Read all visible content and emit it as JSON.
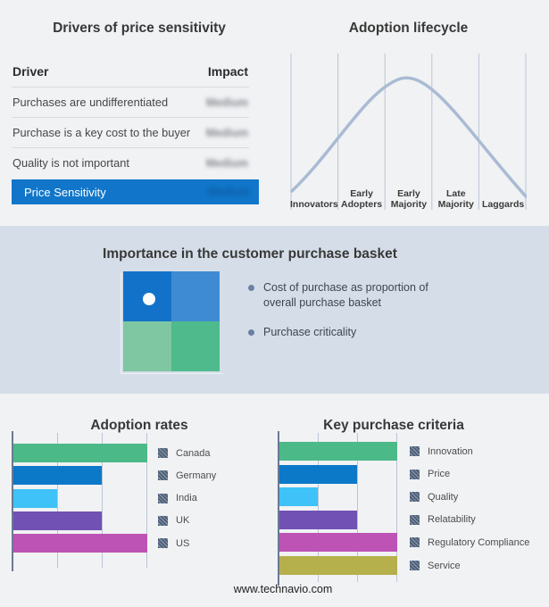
{
  "page": {
    "background": "#f1f2f4",
    "band_background": "#d5dee8",
    "footer": "www.technavio.com"
  },
  "basket": {
    "title": "Importance in the customer purchase basket",
    "bullets": [
      "Cost of purchase as proportion of overall purchase basket",
      "Purchase criticality"
    ],
    "bullet_color": "#6b80a4",
    "quadrant": {
      "top_left": "#1272c9",
      "top_right": "#3e8bd3",
      "bottom_left": "#7fc6a2",
      "bottom_right": "#4fba8b",
      "marker_dot": "#ffffff",
      "marker_position": "top-left quadrant"
    }
  },
  "chart_data": [
    {
      "type": "table",
      "title": "Drivers of price sensitivity",
      "columns": [
        "Driver",
        "Impact"
      ],
      "rows": [
        [
          "Purchases are undifferentiated",
          "Medium"
        ],
        [
          "Purchase is a key cost to the buyer",
          "Medium"
        ],
        [
          "Quality is not important",
          "Medium"
        ]
      ],
      "highlight_row": [
        "Price Sensitivity",
        "Medium"
      ],
      "highlight_color": "#1176c9",
      "impact_blurred": true
    },
    {
      "type": "line",
      "title": "Adoption lifecycle",
      "shape": "bell curve peaking over Early Majority",
      "stages": [
        "Innovators",
        "Early Adopters",
        "Early Majority",
        "Late Majority",
        "Laggards"
      ],
      "curve_color": "#a9bbd3",
      "grid_color": "#bac4d3",
      "grid": true
    },
    {
      "type": "bar",
      "orientation": "horizontal",
      "title": "Adoption rates",
      "categories": [
        "Canada",
        "Germany",
        "India",
        "UK",
        "US"
      ],
      "values": [
        3,
        2,
        1,
        2,
        3
      ],
      "xlim": [
        0,
        3
      ],
      "value_scale": "relative (bars end on 1/3 gridlines; no tick labels shown)",
      "colors": [
        "#4cb988",
        "#0b78c8",
        "#3ec2f7",
        "#7151b4",
        "#bd53b5"
      ],
      "grid": true,
      "legend_position": "right"
    },
    {
      "type": "bar",
      "orientation": "horizontal",
      "title": "Key purchase criteria",
      "categories": [
        "Innovation",
        "Price",
        "Quality",
        "Relatability",
        "Regulatory Compliance",
        "Service"
      ],
      "values": [
        3,
        2,
        1,
        2,
        3,
        3
      ],
      "xlim": [
        0,
        3
      ],
      "value_scale": "relative (bars end on 1/3 gridlines; no tick labels shown)",
      "colors": [
        "#4cb988",
        "#0b78c8",
        "#3ec2f7",
        "#7151b4",
        "#bd53b5",
        "#b5b04b"
      ],
      "grid": true,
      "legend_position": "right"
    }
  ]
}
